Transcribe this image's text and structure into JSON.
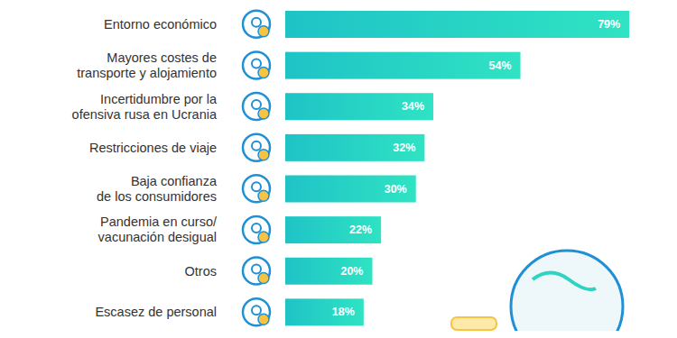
{
  "chart_data": {
    "type": "bar",
    "orientation": "horizontal",
    "categories": [
      "Entorno económico",
      "Mayores costes de\ntransporte y alojamiento",
      "Incertidumbre por la\nofensiva rusa en Ucrania",
      "Restricciones de viaje",
      "Baja confianza\nde los consumidores",
      "Pandemia en curso/\nvacunación desigual",
      "Otros",
      "Escasez de personal"
    ],
    "values": [
      79,
      54,
      34,
      32,
      30,
      22,
      20,
      18
    ],
    "value_labels": [
      "79%",
      "54%",
      "34%",
      "32%",
      "30%",
      "22%",
      "20%",
      "18%"
    ],
    "color": "#1fc3c6",
    "xlim": [
      0,
      80
    ],
    "xticks": [],
    "tick_labels": "y",
    "data_labels": true,
    "grid": false
  }
}
